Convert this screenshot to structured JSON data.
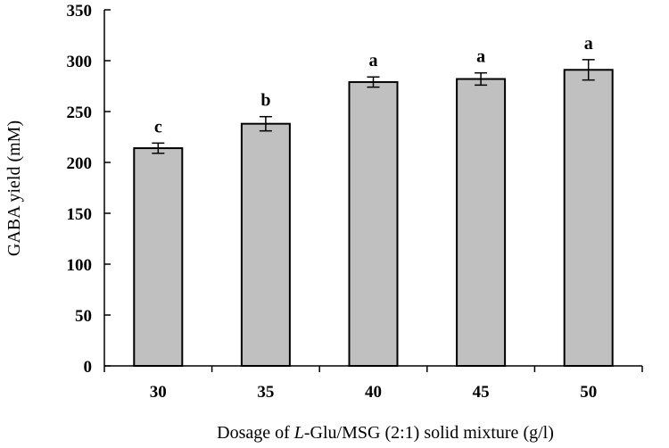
{
  "chart_data": {
    "type": "bar",
    "categories": [
      "30",
      "35",
      "40",
      "45",
      "50"
    ],
    "values": [
      214,
      238,
      279,
      282,
      291
    ],
    "errors": [
      5,
      7,
      5,
      6,
      10
    ],
    "significance_labels": [
      "c",
      "b",
      "a",
      "a",
      "a"
    ],
    "xlabel_parts": [
      "Dosage of ",
      "L",
      "-Glu/MSG (2:1) solid mixture (g/l)"
    ],
    "ylabel": "GABA yield (mM)",
    "ylim": [
      0,
      350
    ],
    "yticks": [
      0,
      50,
      100,
      150,
      200,
      250,
      300,
      350
    ],
    "grid": false,
    "bar_color": "#c0c0c0",
    "bar_edge_color": "#000000"
  }
}
